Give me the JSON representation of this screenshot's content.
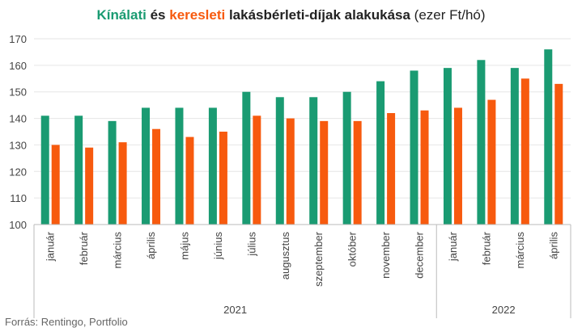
{
  "title": {
    "part1": "Kínálati",
    "part2": " és ",
    "part3": "keresleti",
    "part4": " lakásbérleti-díjak alakukása",
    "part5": " (ezer Ft/hó)"
  },
  "source": "Forrás: Rentingo, Portfolio",
  "colors": {
    "offer": "#1a9b72",
    "demand": "#f75a0e",
    "grid": "#e6e6e6",
    "axis": "#bbbbbb"
  },
  "chart_data": {
    "type": "bar",
    "title": "Kínálati és keresleti lakásbérleti-díjak alakukása (ezer Ft/hó)",
    "categories": [
      "január",
      "február",
      "március",
      "április",
      "május",
      "június",
      "július",
      "augusztus",
      "szeptember",
      "október",
      "november",
      "december",
      "január",
      "február",
      "március",
      "április"
    ],
    "groups": [
      {
        "label": "2021",
        "count": 12
      },
      {
        "label": "2022",
        "count": 4
      }
    ],
    "series": [
      {
        "name": "Kínálati",
        "values": [
          141,
          141,
          139,
          144,
          144,
          144,
          150,
          148,
          148,
          150,
          154,
          158,
          159,
          162,
          159,
          166
        ]
      },
      {
        "name": "keresleti",
        "values": [
          130,
          129,
          131,
          136,
          133,
          135,
          141,
          140,
          139,
          139,
          142,
          143,
          144,
          147,
          155,
          153
        ]
      }
    ],
    "ylim": [
      100,
      170
    ],
    "yticks": [
      100,
      110,
      120,
      130,
      140,
      150,
      160,
      170
    ],
    "grid": true,
    "legend": "none"
  }
}
